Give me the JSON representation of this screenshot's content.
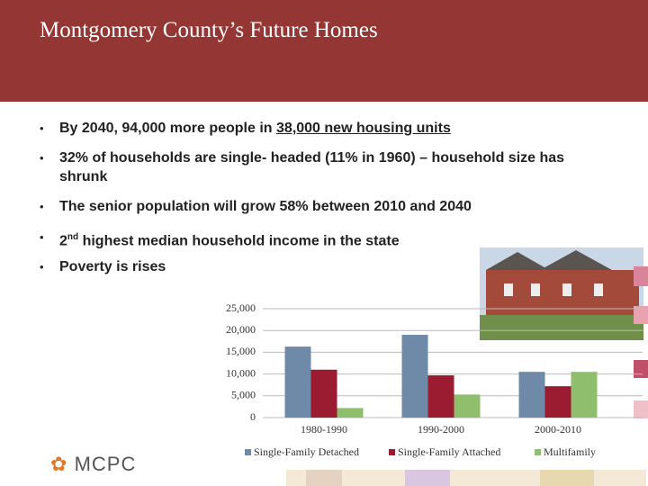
{
  "header": {
    "title": "Montgomery County’s Future Homes"
  },
  "bullets": [
    [
      "By 2040, 94,000 more people in ",
      "38,000 new housing units"
    ],
    [
      "32% of households are single- headed (11% in 1960) – household size has shrunk"
    ],
    [
      "The senior population will grow 58% between 2010 and 2040"
    ],
    [
      "2",
      "nd",
      " highest median household income in the state"
    ],
    [
      "Poverty is rises"
    ]
  ],
  "logo": "MCPC",
  "chart_data": {
    "type": "bar",
    "categories": [
      "1980-1990",
      "1990-2000",
      "2000-2010"
    ],
    "series": [
      {
        "name": "Single-Family Detached",
        "color": "#6f8aa9",
        "values": [
          16300,
          19000,
          10500
        ]
      },
      {
        "name": "Single-Family Attached",
        "color": "#9b1b30",
        "values": [
          11000,
          9700,
          7200
        ]
      },
      {
        "name": "Multifamily",
        "color": "#8fbf6d",
        "values": [
          2200,
          5300,
          10500
        ]
      }
    ],
    "ylim": [
      0,
      25000
    ],
    "yticks": [
      0,
      {
        "value": 5000,
        "label": "5,000"
      },
      {
        "value": 10000,
        "label": "10,000"
      },
      {
        "value": 15000,
        "label": "15,000"
      },
      {
        "value": 20000,
        "label": "20,000"
      },
      {
        "value": 25000,
        "label": "25,000"
      }
    ],
    "grid": true,
    "legend": "bottom"
  }
}
